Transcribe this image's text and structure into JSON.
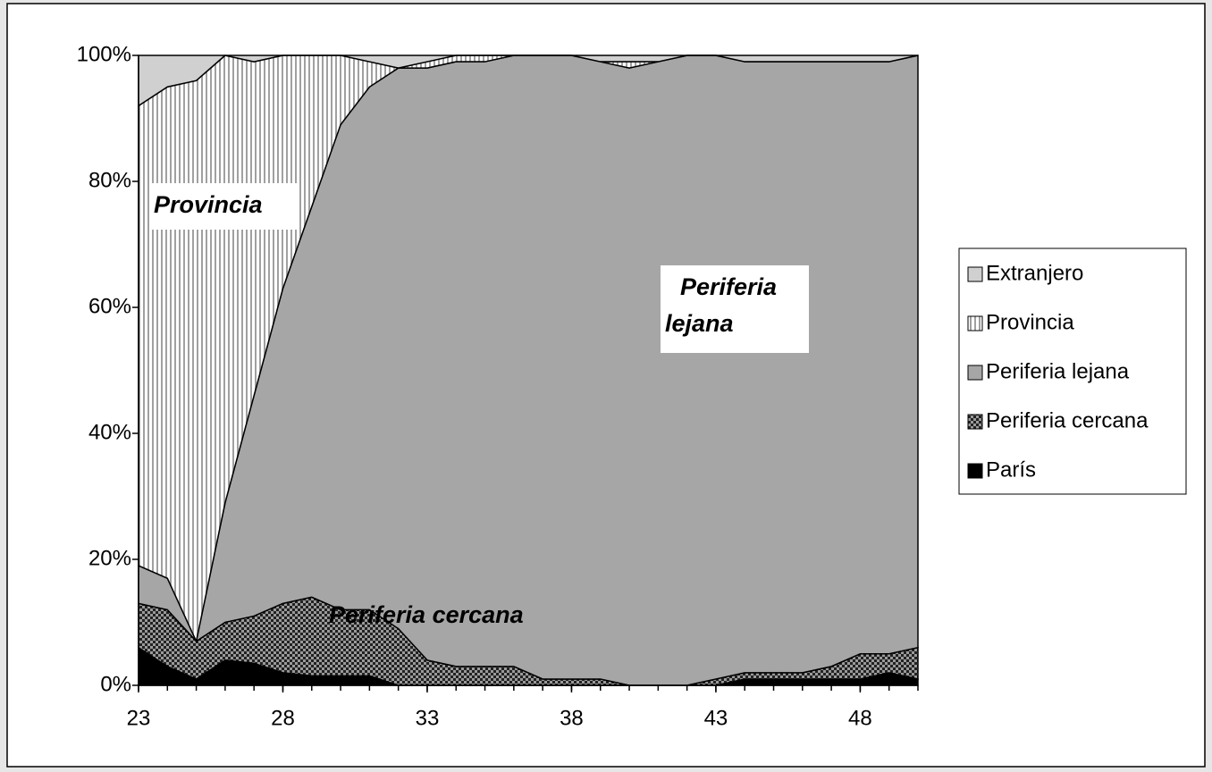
{
  "chart_data": {
    "type": "stacked-area",
    "x": [
      23,
      24,
      25,
      26,
      27,
      28,
      29,
      30,
      31,
      32,
      33,
      34,
      35,
      36,
      37,
      38,
      39,
      40,
      41,
      42,
      43,
      44,
      45,
      46,
      47,
      48,
      49,
      50
    ],
    "xlim": [
      23,
      50
    ],
    "xticks": [
      23,
      28,
      33,
      38,
      43,
      48
    ],
    "ylim": [
      0,
      100
    ],
    "yticks": [
      {
        "value": 0,
        "label": "0%"
      },
      {
        "value": 20,
        "label": "20%"
      },
      {
        "value": 40,
        "label": "40%"
      },
      {
        "value": 60,
        "label": "60%"
      },
      {
        "value": 80,
        "label": "80%"
      },
      {
        "value": 100,
        "label": "100%"
      }
    ],
    "legend": "right",
    "series": [
      {
        "name": "París",
        "color": "#000000",
        "pattern": "solid",
        "values": [
          6,
          3,
          1,
          4,
          3.5,
          2,
          1.5,
          1.5,
          1.5,
          0,
          0,
          0,
          0,
          0,
          0,
          0,
          0,
          0,
          0,
          0,
          0,
          1,
          1,
          1,
          1,
          1,
          2,
          1
        ]
      },
      {
        "name": "Periferia cercana",
        "color": "#808080",
        "pattern": "checker",
        "values": [
          7,
          9,
          6,
          6,
          7.5,
          11,
          12.5,
          10.5,
          10.5,
          9,
          4,
          3,
          3,
          3,
          1,
          1,
          1,
          0,
          0,
          0,
          1,
          1,
          1,
          1,
          2,
          4,
          3,
          5
        ]
      },
      {
        "name": "Periferia lejana",
        "color": "#a6a6a6",
        "pattern": "solid",
        "values": [
          6,
          5,
          0,
          19,
          35,
          50,
          62,
          77,
          83,
          89,
          94,
          96,
          96,
          97,
          99,
          99,
          98,
          98,
          99,
          100,
          99,
          97,
          97,
          97,
          96,
          94,
          94,
          94
        ]
      },
      {
        "name": "Provincia",
        "color": "#a0a0a0",
        "pattern": "vertical-lines",
        "values": [
          73,
          78,
          89,
          71,
          53,
          37,
          24,
          11,
          4,
          0,
          1,
          1,
          1,
          0,
          0,
          0,
          0,
          1,
          0,
          0,
          0,
          0,
          0,
          0,
          0,
          0,
          0,
          0
        ]
      },
      {
        "name": "Extranjero",
        "color": "#d0d0d0",
        "pattern": "solid",
        "values": [
          8,
          5,
          4,
          0,
          1,
          0,
          0,
          0,
          1,
          2,
          1,
          0,
          0,
          0,
          0,
          0,
          1,
          1,
          1,
          0,
          0,
          1,
          1,
          1,
          1,
          1,
          1,
          0
        ]
      }
    ],
    "annotations": [
      {
        "lines": [
          "Provincia"
        ],
        "box": true
      },
      {
        "lines": [
          "Periferia",
          "lejana"
        ],
        "box": true
      },
      {
        "lines": [
          "Periferia cercana"
        ],
        "box": false
      }
    ]
  }
}
